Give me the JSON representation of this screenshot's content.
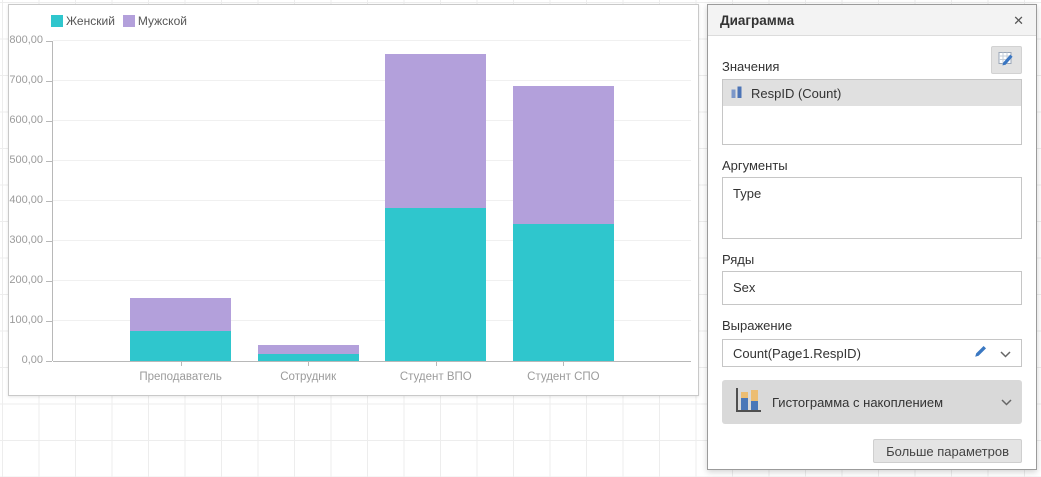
{
  "chart_data": {
    "type": "bar",
    "stacked": true,
    "categories": [
      "Преподаватель",
      "Сотрудник",
      "Студент ВПО",
      "Студент СПО"
    ],
    "series": [
      {
        "name": "Женский",
        "color": "#2fc6cd",
        "values": [
          75,
          18,
          383,
          343
        ]
      },
      {
        "name": "Мужской",
        "color": "#b3a0db",
        "values": [
          82,
          22,
          385,
          345
        ]
      }
    ],
    "ylim": [
      0,
      800
    ],
    "ytick_step": 100,
    "ytick_labels": [
      "0,00",
      "100,00",
      "200,00",
      "300,00",
      "400,00",
      "500,00",
      "600,00",
      "700,00",
      "800,00"
    ],
    "grid": "horizontal",
    "legend_position": "top-left",
    "axis_color": "#b8b8b8",
    "gridline_color": "#f0f0f0",
    "tick_label_color": "#9b9b9b"
  },
  "panel": {
    "title": "Диаграмма",
    "close_glyph": "✕",
    "values": {
      "label": "Значения",
      "items": [
        {
          "label": "RespID (Count)",
          "selected": true
        }
      ]
    },
    "arguments": {
      "label": "Аргументы",
      "items": [
        {
          "label": "Type"
        }
      ]
    },
    "series": {
      "label": "Ряды",
      "items": [
        {
          "label": "Sex"
        }
      ]
    },
    "expression": {
      "label": "Выражение",
      "value": "Count(Page1.RespID)"
    },
    "chart_type": {
      "value": "Гистограмма с накоплением"
    },
    "more_button_label": "Больше параметров"
  }
}
